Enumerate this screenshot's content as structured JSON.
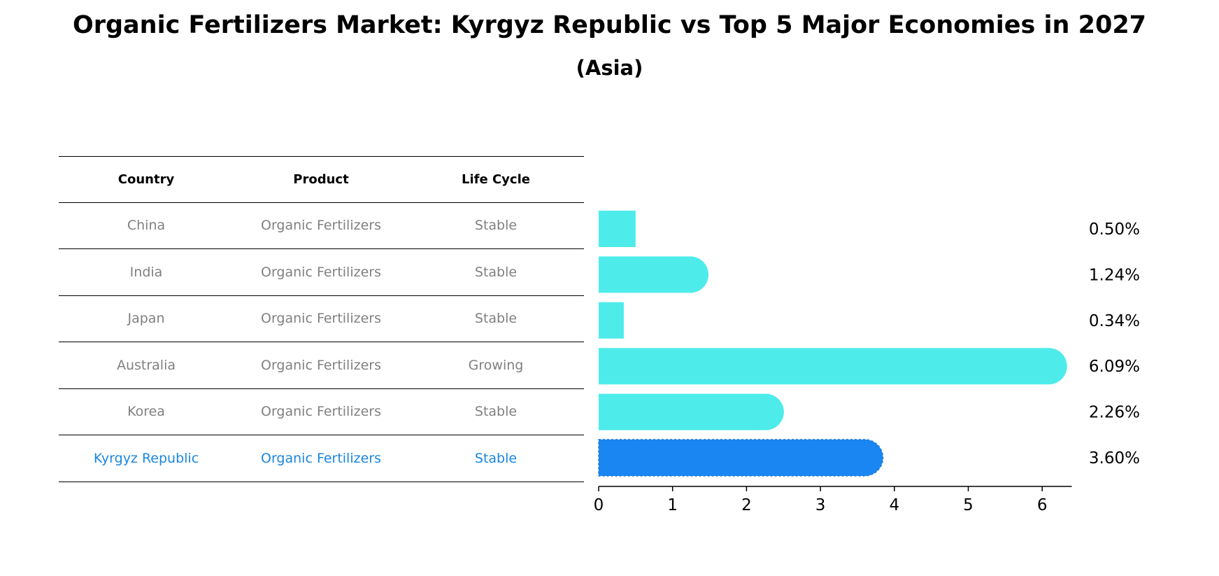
{
  "title": "Organic Fertilizers Market: Kyrgyz Republic vs Top 5 Major Economies in 2027",
  "subtitle": "(Asia)",
  "colors": {
    "bar": "#4deceb",
    "highlight": "#1a86f2",
    "muted_text": "#808080",
    "highlight_text": "#1a86e0"
  },
  "table": {
    "headers": [
      "Country",
      "Product",
      "Life Cycle"
    ],
    "rows": [
      {
        "country": "China",
        "product": "Organic Fertilizers",
        "life_cycle": "Stable"
      },
      {
        "country": "India",
        "product": "Organic Fertilizers",
        "life_cycle": "Stable"
      },
      {
        "country": "Japan",
        "product": "Organic Fertilizers",
        "life_cycle": "Stable"
      },
      {
        "country": "Australia",
        "product": "Organic Fertilizers",
        "life_cycle": "Growing"
      },
      {
        "country": "Korea",
        "product": "Organic Fertilizers",
        "life_cycle": "Stable"
      },
      {
        "country": "Kyrgyz Republic",
        "product": "Organic Fertilizers",
        "life_cycle": "Stable"
      }
    ]
  },
  "chart_data": {
    "type": "bar",
    "orientation": "horizontal",
    "categories": [
      "China",
      "India",
      "Japan",
      "Australia",
      "Korea",
      "Kyrgyz Republic"
    ],
    "values": [
      0.5,
      1.24,
      0.34,
      6.09,
      2.26,
      3.6
    ],
    "labels": [
      "0.50%",
      "1.24%",
      "0.34%",
      "6.09%",
      "2.26%",
      "3.60%"
    ],
    "highlight_index": 5,
    "xlim": [
      0,
      6.4
    ],
    "xticks": [
      0,
      1,
      2,
      3,
      4,
      5,
      6
    ],
    "grid": false
  }
}
